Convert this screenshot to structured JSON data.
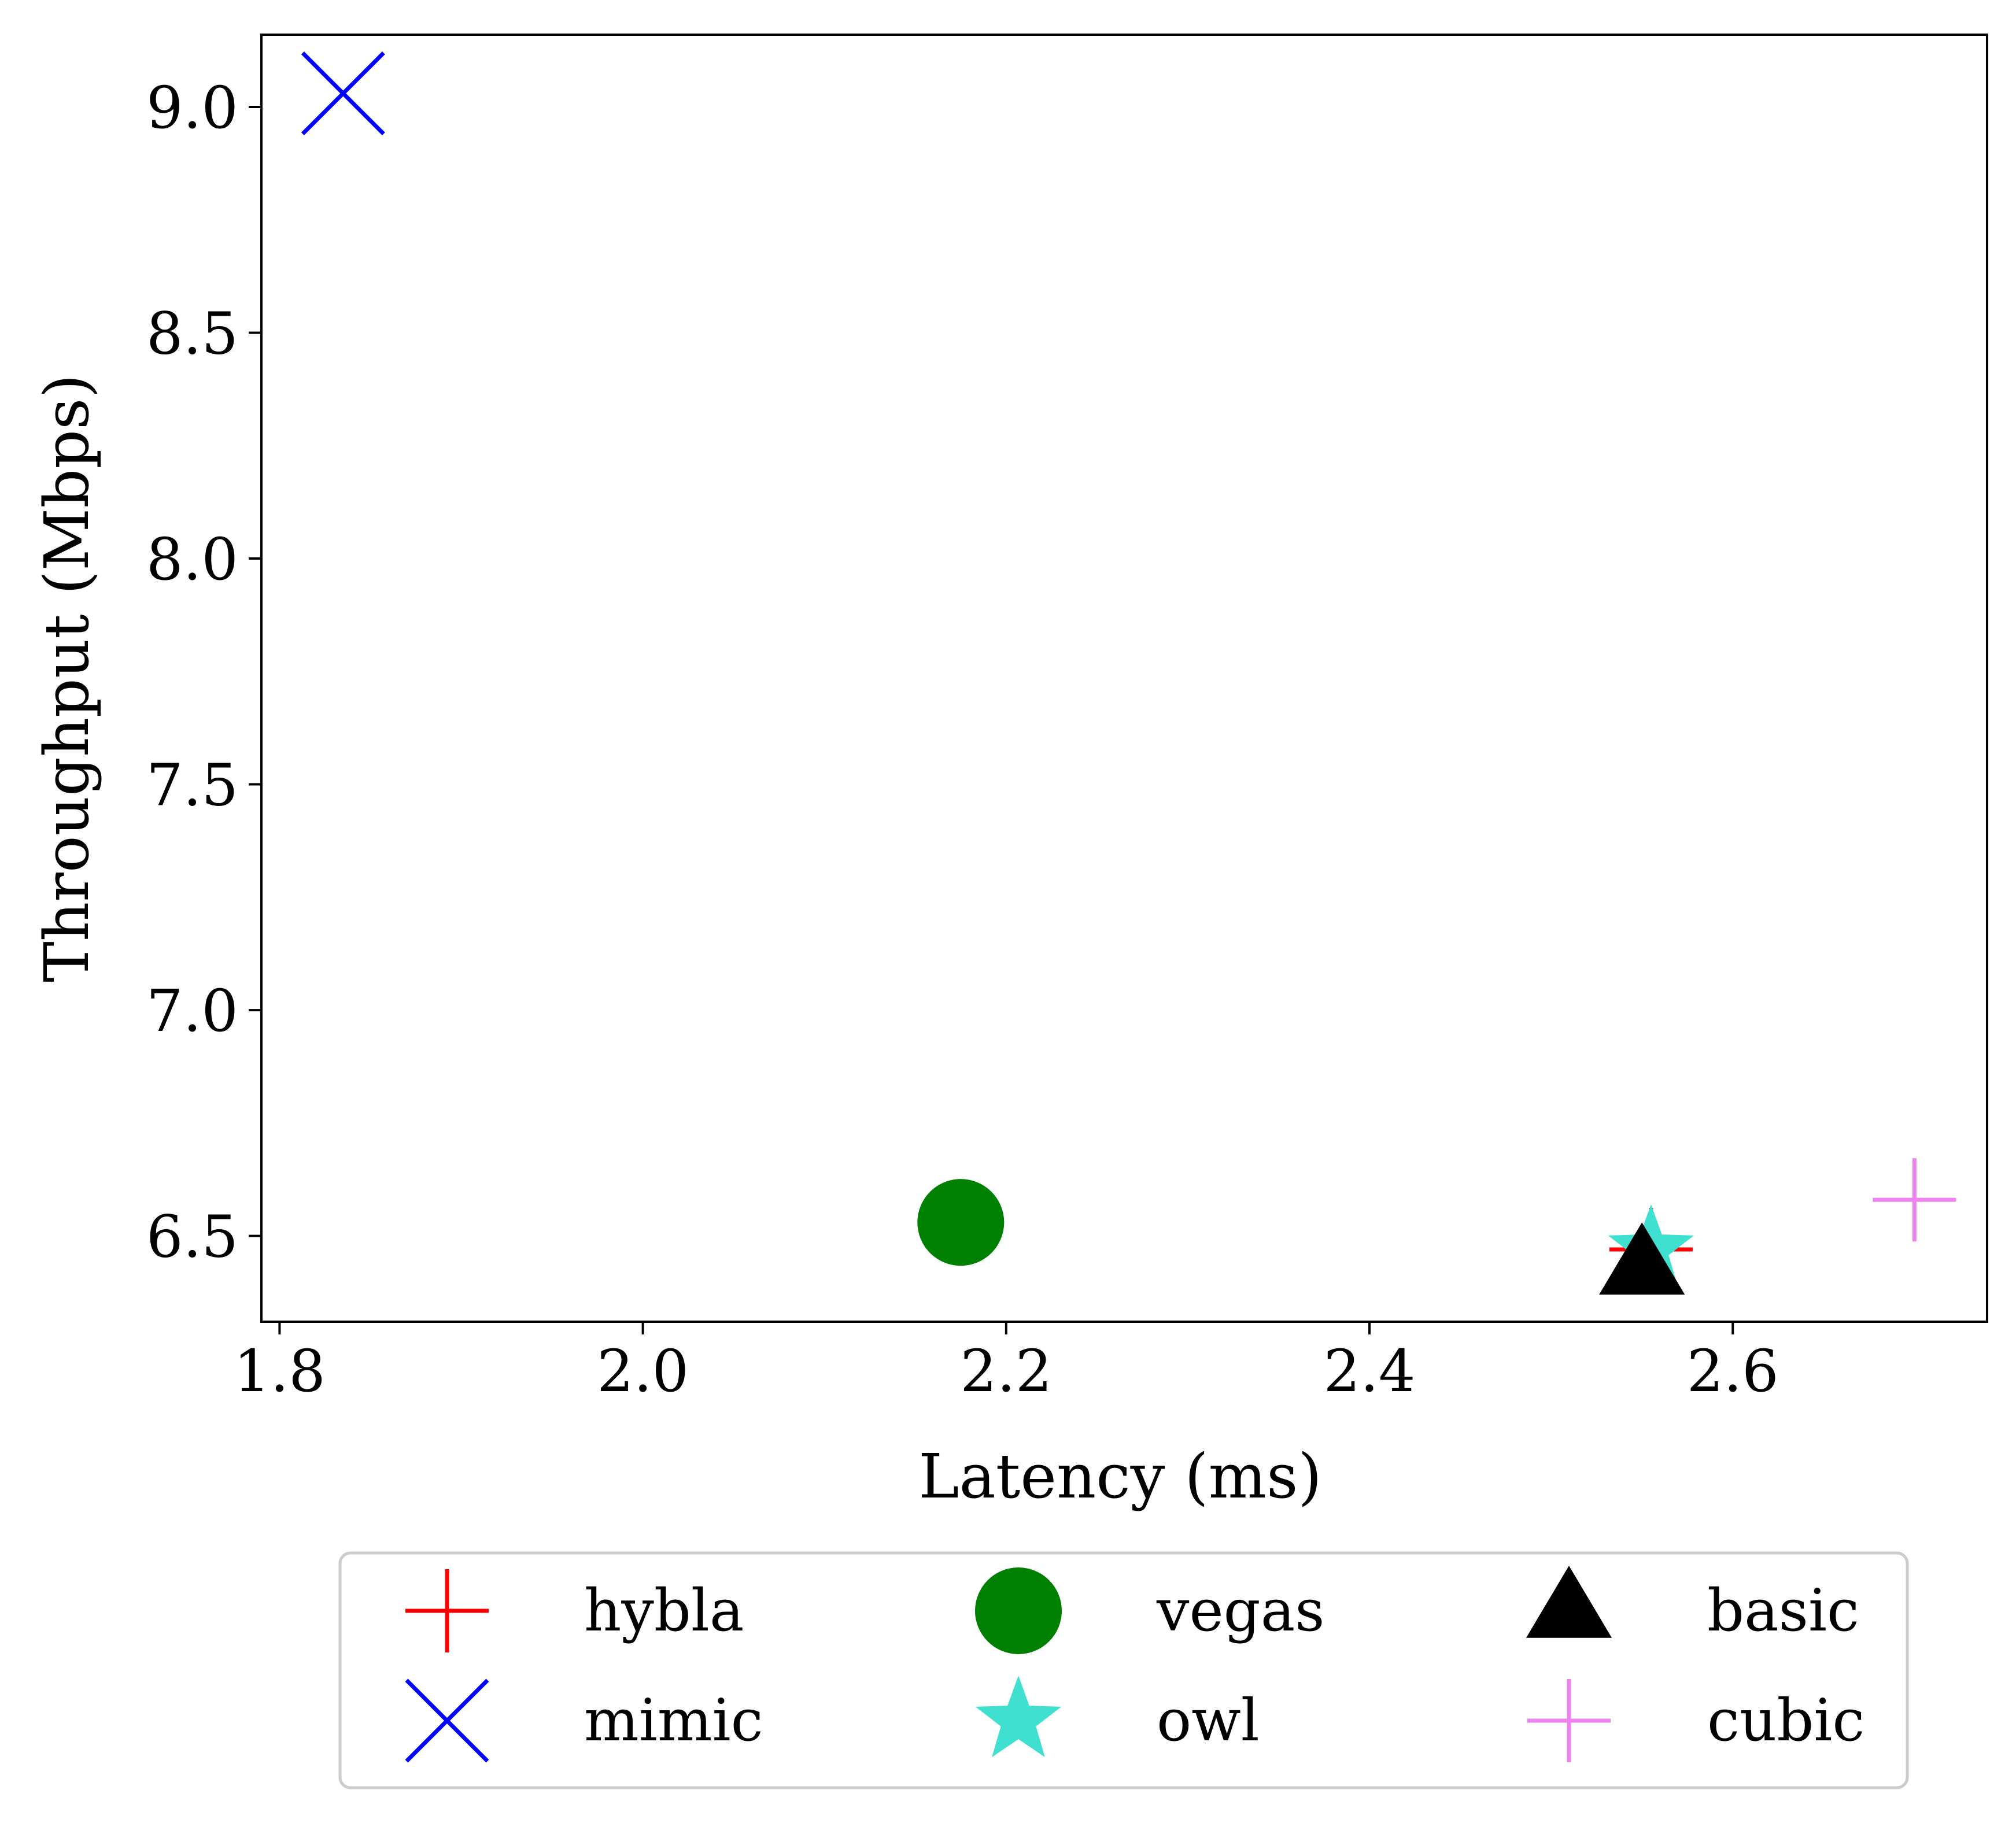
{
  "chart_data": {
    "type": "scatter",
    "xlabel": "Latency (ms)",
    "ylabel": "Throughput (Mbps)",
    "xlim": [
      1.79,
      2.74
    ],
    "ylim": [
      6.31,
      9.16
    ],
    "xticks": [
      1.8,
      2.0,
      2.2,
      2.4,
      2.6
    ],
    "xtick_labels": [
      "1.8",
      "2.0",
      "2.2",
      "2.4",
      "2.6"
    ],
    "yticks": [
      6.5,
      7.0,
      7.5,
      8.0,
      8.5,
      9.0
    ],
    "ytick_labels": [
      "6.5",
      "7.0",
      "7.5",
      "8.0",
      "8.5",
      "9.0"
    ],
    "grid": false,
    "legend_position": "bottom-outside",
    "series": [
      {
        "name": "hybla",
        "marker": "plus",
        "color": "#ff0000",
        "x": 2.555,
        "y": 6.47
      },
      {
        "name": "mimic",
        "marker": "x",
        "color": "#0000ff",
        "x": 1.835,
        "y": 9.03
      },
      {
        "name": "vegas",
        "marker": "circle",
        "color": "#008000",
        "x": 2.175,
        "y": 6.53
      },
      {
        "name": "owl",
        "marker": "star",
        "color": "#40e0d0",
        "x": 2.555,
        "y": 6.47
      },
      {
        "name": "basic",
        "marker": "triangle",
        "color": "#000000",
        "x": 2.55,
        "y": 6.43
      },
      {
        "name": "cubic",
        "marker": "plus",
        "color": "#ee82ee",
        "x": 2.7,
        "y": 6.58
      }
    ]
  }
}
